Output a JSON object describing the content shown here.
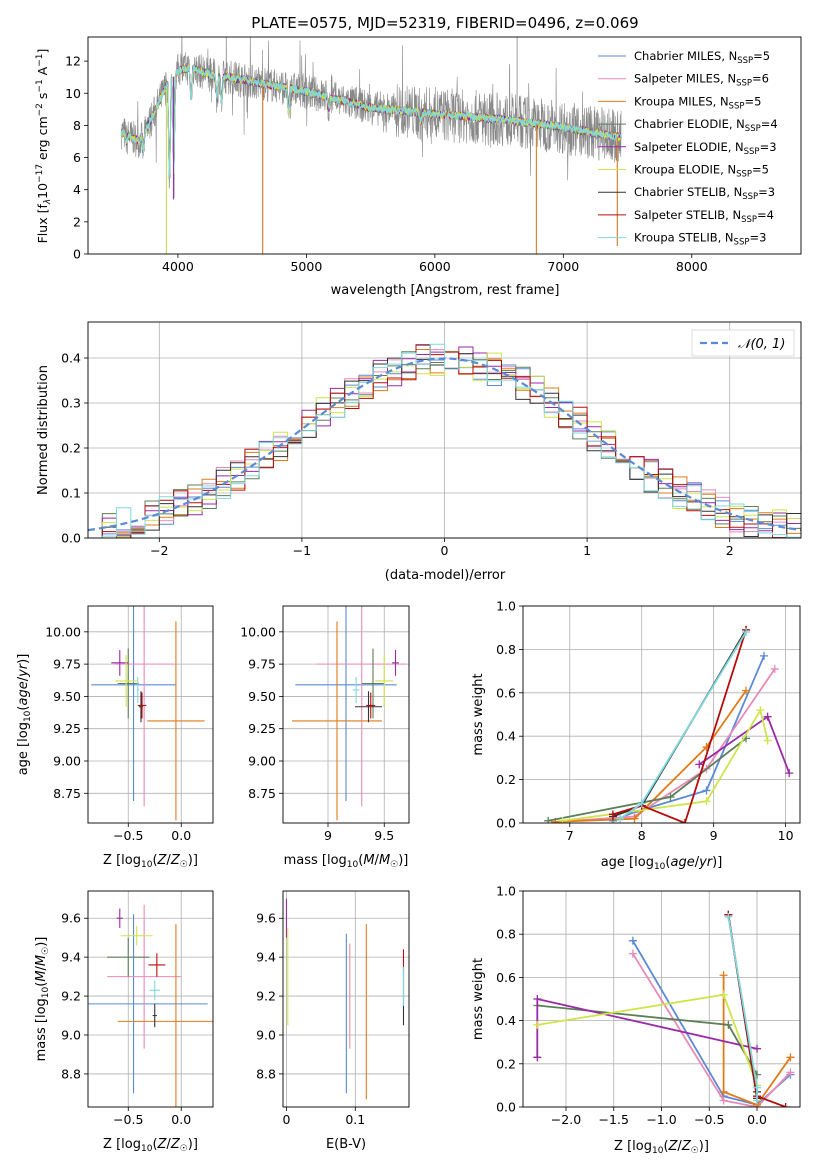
{
  "figure_title": "PLATE=0575, MJD=52319, FIBERID=0496, z=0.069",
  "colors": {
    "Chabrier MILES": "#5b8ad6",
    "Salpeter MILES": "#e88ab7",
    "Kroupa MILES": "#e07b1a",
    "Chabrier ELODIE": "#5c7f58",
    "Salpeter ELODIE": "#9a2aa8",
    "Kroupa ELODIE": "#cfe44a",
    "Chabrier STELIB": "#333333",
    "Salpeter STELIB": "#b50d0d",
    "Kroupa STELIB": "#7fd8dd",
    "data": "#888888",
    "normal": "#5b8ad6"
  },
  "chart_data": [
    {
      "id": "spectrum",
      "type": "line",
      "xlabel": "wavelength [Angstrom, rest frame]",
      "ylabel": "Flux [f_λ 10^-17 erg cm^-2 s^-1 A^-1]",
      "xlim": [
        3300,
        8850
      ],
      "ylim": [
        0,
        13.5
      ],
      "xticks": [
        4000,
        5000,
        6000,
        7000,
        8000
      ],
      "yticks": [
        0,
        2,
        4,
        6,
        8,
        10,
        12
      ],
      "legend_position": "top-right",
      "legend": [
        {
          "model": "Chabrier MILES",
          "nssp": "5"
        },
        {
          "model": "Salpeter MILES",
          "nssp": "6"
        },
        {
          "model": "Kroupa MILES",
          "nssp": "5"
        },
        {
          "model": "Chabrier ELODIE",
          "nssp": "4"
        },
        {
          "model": "Salpeter ELODIE",
          "nssp": "3"
        },
        {
          "model": "Kroupa ELODIE",
          "nssp": "5"
        },
        {
          "model": "Chabrier STELIB",
          "nssp": "3"
        },
        {
          "model": "Salpeter STELIB",
          "nssp": "4"
        },
        {
          "model": "Kroupa STELIB",
          "nssp": "3"
        }
      ],
      "continuum": [
        [
          3560,
          7.6
        ],
        [
          3700,
          7.0
        ],
        [
          3800,
          8.5
        ],
        [
          3900,
          10.3
        ],
        [
          4000,
          11.4
        ],
        [
          4100,
          11.6
        ],
        [
          4200,
          11.3
        ],
        [
          4300,
          11.0
        ],
        [
          4400,
          11.0
        ],
        [
          4600,
          10.7
        ],
        [
          4800,
          10.4
        ],
        [
          5000,
          10.1
        ],
        [
          5200,
          9.7
        ],
        [
          5500,
          9.1
        ],
        [
          6000,
          8.7
        ],
        [
          6500,
          8.4
        ],
        [
          6800,
          8.1
        ],
        [
          7000,
          7.9
        ],
        [
          7200,
          7.6
        ],
        [
          7400,
          7.3
        ],
        [
          7450,
          7.3
        ]
      ],
      "features": [
        [
          3600,
          7.0
        ],
        [
          3730,
          6.3
        ],
        [
          3934,
          3.9
        ],
        [
          3968,
          4.9
        ],
        [
          4102,
          9.5
        ],
        [
          4304,
          9.6
        ],
        [
          4340,
          9.2
        ],
        [
          4861,
          8.7
        ],
        [
          5175,
          8.9
        ],
        [
          5890,
          8.2
        ],
        [
          6563,
          8.7
        ],
        [
          7600,
          6.4
        ]
      ],
      "spikes": [
        [
          4660,
          0
        ],
        [
          6790,
          0
        ],
        [
          3910,
          0
        ],
        [
          3970,
          3.5
        ],
        [
          7420,
          0.5
        ],
        [
          6640,
          13.5
        ]
      ]
    },
    {
      "id": "residuals",
      "type": "histogram",
      "xlabel": "(data-model)/error",
      "ylabel": "Normed distribution",
      "xlim": [
        -2.5,
        2.5
      ],
      "ylim": [
        0,
        0.48
      ],
      "xticks": [
        -2,
        -1,
        0,
        1,
        2
      ],
      "yticks": [
        0.0,
        0.1,
        0.2,
        0.3,
        0.4
      ],
      "legend": "𝒩(0, 1)",
      "legend_position": "top-right",
      "bin_width": 0.1,
      "bin_start": -2.5,
      "reference_curve": "normal(0,1)"
    },
    {
      "id": "age-vs-Z",
      "type": "errorbar",
      "xlabel": "Z [log10(Z/Z☉)]",
      "ylabel": "age [log10(age/yr)]",
      "xlim": [
        -0.88,
        0.3
      ],
      "ylim": [
        8.52,
        10.2
      ],
      "xticks": [
        -0.5,
        0.0
      ],
      "xticklabels": [
        "−0.5",
        "0.0"
      ],
      "yticks": [
        8.75,
        9.0,
        9.25,
        9.5,
        9.75,
        10.0
      ],
      "points": [
        {
          "model": "Chabrier MILES",
          "x": -0.45,
          "xerr": 0.4,
          "y": 9.59,
          "yerr": 0.9
        },
        {
          "model": "Salpeter MILES",
          "x": -0.35,
          "xerr": 0.28,
          "y": 9.75,
          "yerr": 1.1
        },
        {
          "model": "Kroupa MILES",
          "x": -0.05,
          "xerr": 0.27,
          "y": 9.31,
          "yerr": 0.77
        },
        {
          "model": "Chabrier ELODIE",
          "x": -0.5,
          "xerr": 0.1,
          "y": 9.6,
          "yerr": 0.27
        },
        {
          "model": "Salpeter ELODIE",
          "x": -0.58,
          "xerr": 0.08,
          "y": 9.76,
          "yerr": 0.1
        },
        {
          "model": "Kroupa ELODIE",
          "x": -0.52,
          "xerr": 0.1,
          "y": 9.62,
          "yerr": 0.2
        },
        {
          "model": "Chabrier STELIB",
          "x": -0.38,
          "xerr": 0.02,
          "y": 9.42,
          "yerr": 0.12
        },
        {
          "model": "Salpeter STELIB",
          "x": -0.37,
          "xerr": 0.04,
          "y": 9.43,
          "yerr": 0.1
        },
        {
          "model": "Kroupa STELIB",
          "x": -0.41,
          "xerr": 0.01,
          "y": 9.55,
          "yerr": 0.1
        }
      ]
    },
    {
      "id": "age-vs-mass",
      "type": "errorbar",
      "xlabel": "mass [log10(M/M☉)]",
      "xlim": [
        8.6,
        9.72
      ],
      "ylim": [
        8.52,
        10.2
      ],
      "xticks": [
        9.0,
        9.5
      ],
      "yticks": [
        8.75,
        9.0,
        9.25,
        9.5,
        9.75,
        10.0
      ],
      "points": [
        {
          "model": "Chabrier MILES",
          "x": 9.16,
          "xerr": 0.45,
          "y": 9.59,
          "yerr": 0.9
        },
        {
          "model": "Salpeter MILES",
          "x": 9.3,
          "xerr": 0.4,
          "y": 9.75,
          "yerr": 1.1
        },
        {
          "model": "Kroupa MILES",
          "x": 9.08,
          "xerr": 0.4,
          "y": 9.31,
          "yerr": 0.77
        },
        {
          "model": "Chabrier ELODIE",
          "x": 9.4,
          "xerr": 0.1,
          "y": 9.6,
          "yerr": 0.27
        },
        {
          "model": "Salpeter ELODIE",
          "x": 9.6,
          "xerr": 0.03,
          "y": 9.76,
          "yerr": 0.1
        },
        {
          "model": "Kroupa ELODIE",
          "x": 9.5,
          "xerr": 0.08,
          "y": 9.62,
          "yerr": 0.2
        },
        {
          "model": "Chabrier STELIB",
          "x": 9.36,
          "xerr": 0.12,
          "y": 9.42,
          "yerr": 0.12
        },
        {
          "model": "Salpeter STELIB",
          "x": 9.38,
          "xerr": 0.04,
          "y": 9.43,
          "yerr": 0.1
        },
        {
          "model": "Kroupa STELIB",
          "x": 9.25,
          "xerr": 0.03,
          "y": 9.55,
          "yerr": 0.1
        }
      ]
    },
    {
      "id": "weight-vs-age",
      "type": "line",
      "xlabel": "age  [log10(age/yr)]",
      "ylabel": "mass weight",
      "xlim": [
        6.35,
        10.2
      ],
      "ylim": [
        0,
        1.0
      ],
      "xticks": [
        7,
        8,
        9,
        10
      ],
      "yticks": [
        0.0,
        0.2,
        0.4,
        0.6,
        0.8,
        1.0
      ],
      "series": [
        {
          "model": "Chabrier MILES",
          "x": [
            7.6,
            7.9,
            8.9,
            9.7
          ],
          "y": [
            0.01,
            0.05,
            0.15,
            0.77
          ]
        },
        {
          "model": "Salpeter MILES",
          "x": [
            6.8,
            7.9,
            8.9,
            9.85
          ],
          "y": [
            0.005,
            0.03,
            0.25,
            0.71
          ]
        },
        {
          "model": "Kroupa MILES",
          "x": [
            6.8,
            7.9,
            8.9,
            9.45
          ],
          "y": [
            0.005,
            0.02,
            0.35,
            0.61
          ]
        },
        {
          "model": "Chabrier ELODIE",
          "x": [
            6.7,
            8.4,
            9.45
          ],
          "y": [
            0.01,
            0.12,
            0.39
          ]
        },
        {
          "model": "Salpeter ELODIE",
          "x": [
            8.8,
            9.75,
            10.05
          ],
          "y": [
            0.27,
            0.49,
            0.23
          ]
        },
        {
          "model": "Kroupa ELODIE",
          "x": [
            6.9,
            8.9,
            9.65,
            9.75
          ],
          "y": [
            0.01,
            0.1,
            0.52,
            0.38
          ]
        },
        {
          "model": "Chabrier STELIB",
          "x": [
            7.6,
            8.0,
            9.45
          ],
          "y": [
            0.03,
            0.08,
            0.89
          ]
        },
        {
          "model": "Salpeter STELIB",
          "x": [
            7.6,
            8.0,
            8.6,
            9.45
          ],
          "y": [
            0.04,
            0.08,
            0.0,
            0.89
          ]
        },
        {
          "model": "Kroupa STELIB",
          "x": [
            7.7,
            8.0,
            9.45
          ],
          "y": [
            0.02,
            0.09,
            0.88
          ]
        }
      ]
    },
    {
      "id": "mass-vs-Z",
      "type": "errorbar",
      "xlabel": "Z [log10(Z/Z☉)]",
      "ylabel": "mass [log10(M/M☉)]",
      "xlim": [
        -0.88,
        0.3
      ],
      "ylim": [
        8.63,
        9.74
      ],
      "xticks": [
        -0.5,
        0.0
      ],
      "xticklabels": [
        "−0.5",
        "0.0"
      ],
      "yticks": [
        8.8,
        9.0,
        9.2,
        9.4,
        9.6
      ],
      "points": [
        {
          "model": "Chabrier MILES",
          "x": -0.45,
          "xerr": 0.7,
          "y": 9.16,
          "yerr": 0.46
        },
        {
          "model": "Salpeter MILES",
          "x": -0.35,
          "xerr": 0.35,
          "y": 9.3,
          "yerr": 0.37
        },
        {
          "model": "Kroupa MILES",
          "x": -0.05,
          "xerr": 0.55,
          "y": 9.07,
          "yerr": 0.5
        },
        {
          "model": "Chabrier ELODIE",
          "x": -0.5,
          "xerr": 0.2,
          "y": 9.4,
          "yerr": 0.1
        },
        {
          "model": "Salpeter ELODIE",
          "x": -0.58,
          "xerr": 0.03,
          "y": 9.6,
          "yerr": 0.05
        },
        {
          "model": "Kroupa ELODIE",
          "x": -0.42,
          "xerr": 0.15,
          "y": 9.51,
          "yerr": 0.05
        },
        {
          "model": "Chabrier STELIB",
          "x": -0.25,
          "xerr": 0.02,
          "y": 9.1,
          "yerr": 0.06
        },
        {
          "model": "Salpeter STELIB",
          "x": -0.23,
          "xerr": 0.08,
          "y": 9.36,
          "yerr": 0.06
        },
        {
          "model": "Kroupa STELIB",
          "x": -0.25,
          "xerr": 0.05,
          "y": 9.23,
          "yerr": 0.05
        }
      ]
    },
    {
      "id": "mass-vs-ebv",
      "type": "errorbar",
      "xlabel": "E(B-V)",
      "xlim": [
        -0.005,
        0.178
      ],
      "ylim": [
        8.63,
        9.74
      ],
      "xticks": [
        0.0,
        0.1
      ],
      "yticks": [
        8.8,
        9.0,
        9.2,
        9.4,
        9.6
      ],
      "points": [
        {
          "model": "Chabrier MILES",
          "x": 0.087,
          "xerr": 0,
          "y": 9.11,
          "yerr": 0.41
        },
        {
          "model": "Salpeter MILES",
          "x": 0.092,
          "xerr": 0,
          "y": 9.2,
          "yerr": 0.27
        },
        {
          "model": "Kroupa MILES",
          "x": 0.116,
          "xerr": 0,
          "y": 9.12,
          "yerr": 0.45
        },
        {
          "model": "Salpeter ELODIE",
          "x": 0.0,
          "xerr": 0,
          "y": 9.6,
          "yerr": 0.1
        },
        {
          "model": "Kroupa ELODIE",
          "x": 0.002,
          "xerr": 0,
          "y": 9.3,
          "yerr": 0.25
        },
        {
          "model": "Chabrier STELIB",
          "x": 0.17,
          "xerr": 0,
          "y": 9.2,
          "yerr": 0.15
        },
        {
          "model": "Salpeter STELIB",
          "x": 0.17,
          "xerr": 0,
          "y": 9.38,
          "yerr": 0.06
        },
        {
          "model": "Kroupa STELIB",
          "x": 0.17,
          "xerr": 0,
          "y": 9.25,
          "yerr": 0.1
        }
      ]
    },
    {
      "id": "weight-vs-Z",
      "type": "line",
      "xlabel": "Z [log10(Z/Z☉)]",
      "ylabel": "mass weight",
      "xlim": [
        -2.45,
        0.45
      ],
      "ylim": [
        0,
        1.0
      ],
      "xticks": [
        -2.0,
        -1.5,
        -1.0,
        -0.5,
        0.0
      ],
      "xticklabels": [
        "−2.0",
        "−1.5",
        "−1.0",
        "−0.5",
        "0.0"
      ],
      "yticks": [
        0.0,
        0.2,
        0.4,
        0.6,
        0.8,
        1.0
      ],
      "series": [
        {
          "model": "Chabrier MILES",
          "x": [
            -1.3,
            -0.35,
            0.0,
            0.35
          ],
          "y": [
            0.77,
            0.05,
            0.01,
            0.15
          ]
        },
        {
          "model": "Salpeter MILES",
          "x": [
            -1.3,
            -0.35,
            0.0,
            0.35
          ],
          "y": [
            0.71,
            0.03,
            0.0,
            0.16
          ]
        },
        {
          "model": "Kroupa MILES",
          "x": [
            -0.35,
            -0.35,
            0.0,
            0.35
          ],
          "y": [
            0.61,
            0.07,
            0.01,
            0.23
          ]
        },
        {
          "model": "Chabrier ELODIE",
          "x": [
            -2.3,
            -0.3,
            0.0
          ],
          "y": [
            0.47,
            0.38,
            0.15
          ]
        },
        {
          "model": "Salpeter ELODIE",
          "x": [
            -2.3,
            -2.3,
            0.0
          ],
          "y": [
            0.23,
            0.5,
            0.27
          ]
        },
        {
          "model": "Kroupa ELODIE",
          "x": [
            -2.3,
            -0.35,
            0.0
          ],
          "y": [
            0.38,
            0.52,
            0.1
          ]
        },
        {
          "model": "Chabrier STELIB",
          "x": [
            -0.3,
            0.0,
            0.0
          ],
          "y": [
            0.89,
            0.04,
            0.07
          ]
        },
        {
          "model": "Salpeter STELIB",
          "x": [
            -0.3,
            0.0,
            0.3
          ],
          "y": [
            0.89,
            0.05,
            0.0
          ]
        },
        {
          "model": "Kroupa STELIB",
          "x": [
            -0.3,
            0.0,
            0.0
          ],
          "y": [
            0.88,
            0.09,
            0.03
          ]
        }
      ]
    }
  ]
}
